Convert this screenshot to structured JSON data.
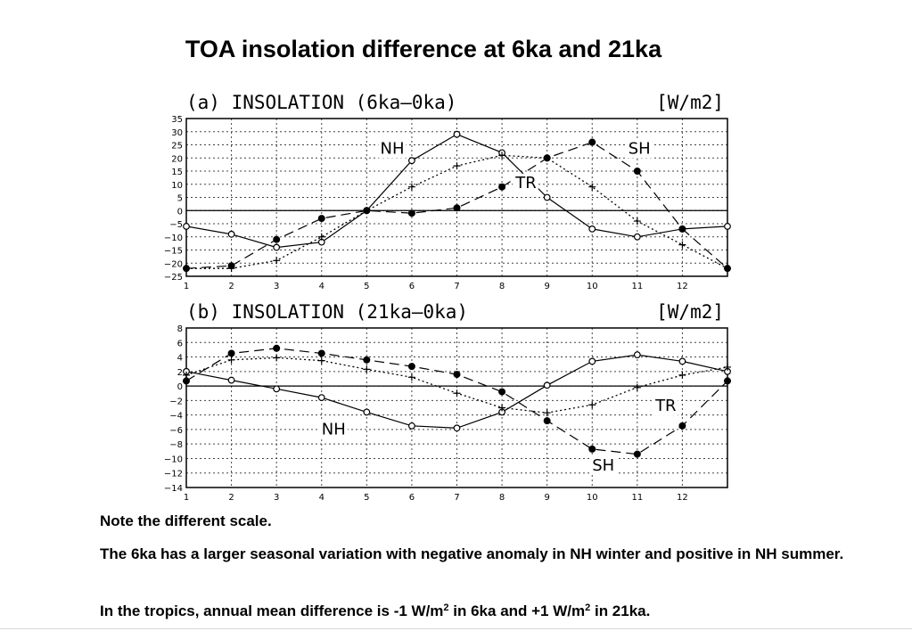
{
  "slide": {
    "title": "TOA insolation difference at 6ka and 21ka",
    "notes": {
      "note1": "Note the different scale.",
      "note2": "The 6ka has a larger seasonal variation with negative anomaly in NH winter and positive in NH summer.",
      "note3_a": "In the tropics, annual mean difference is -1 W/m",
      "note3_sup1": "2",
      "note3_b": " in 6ka and +1 W/m",
      "note3_sup2": "2",
      "note3_c": " in 21ka."
    }
  },
  "chart_data": [
    {
      "type": "line",
      "title": "(a) INSOLATION (6ka–0ka)",
      "unit_label": "[W/m2]",
      "x": [
        0,
        1,
        2,
        3,
        4,
        5,
        6,
        7,
        8,
        9,
        10,
        11,
        12
      ],
      "xticks": [
        1,
        2,
        3,
        4,
        5,
        6,
        7,
        8,
        9,
        10,
        11,
        12
      ],
      "xlim": [
        1,
        13
      ],
      "ylim": [
        -25,
        35
      ],
      "yticks": [
        35,
        30,
        25,
        20,
        15,
        10,
        5,
        0,
        -5,
        -10,
        -15,
        -20,
        -25
      ],
      "grid": true,
      "series": [
        {
          "name": "NH",
          "marker": "open-circle",
          "line": "solid",
          "values": [
            -6,
            -9,
            -14,
            -12,
            0,
            19,
            29,
            22,
            5,
            -7,
            -10,
            -7,
            -6
          ]
        },
        {
          "name": "SH",
          "marker": "filled-circle",
          "line": "dashed",
          "values": [
            -22,
            -21,
            -11,
            -3,
            0,
            -1,
            1,
            9,
            20,
            26,
            15,
            -7,
            -22
          ]
        },
        {
          "name": "TR",
          "marker": "plus",
          "line": "dotted",
          "values": [
            -22,
            -22,
            -19,
            -10,
            0,
            9,
            17,
            21,
            20,
            9,
            -4,
            -13,
            -22
          ]
        }
      ],
      "annotations": [
        {
          "text": "NH",
          "x": 5.3,
          "y": 24
        },
        {
          "text": "SH",
          "x": 10.8,
          "y": 24
        },
        {
          "text": "TR",
          "x": 8.3,
          "y": 11
        }
      ]
    },
    {
      "type": "line",
      "title": "(b) INSOLATION (21ka–0ka)",
      "unit_label": "[W/m2]",
      "x": [
        0,
        1,
        2,
        3,
        4,
        5,
        6,
        7,
        8,
        9,
        10,
        11,
        12
      ],
      "xticks": [
        1,
        2,
        3,
        4,
        5,
        6,
        7,
        8,
        9,
        10,
        11,
        12
      ],
      "xlim": [
        1,
        13
      ],
      "ylim": [
        -14,
        8
      ],
      "yticks": [
        8,
        6,
        4,
        2,
        0,
        -2,
        -4,
        -6,
        -8,
        -10,
        -12,
        -14
      ],
      "grid": true,
      "series": [
        {
          "name": "NH",
          "marker": "open-circle",
          "line": "solid",
          "values": [
            2,
            0.8,
            -0.4,
            -1.6,
            -3.6,
            -5.5,
            -5.8,
            -3.6,
            0.1,
            3.4,
            4.3,
            3.4,
            2
          ]
        },
        {
          "name": "SH",
          "marker": "filled-circle",
          "line": "dashed",
          "values": [
            0.7,
            4.5,
            5.2,
            4.5,
            3.6,
            2.7,
            1.6,
            -0.8,
            -4.8,
            -8.7,
            -9.4,
            -5.5,
            0.7
          ]
        },
        {
          "name": "TR",
          "marker": "plus",
          "line": "dotted",
          "values": [
            1.5,
            3.6,
            3.9,
            3.5,
            2.3,
            1.2,
            -1,
            -3,
            -3.7,
            -2.6,
            -0.2,
            1.5,
            2.6
          ]
        }
      ],
      "annotations": [
        {
          "text": "NH",
          "x": 4.0,
          "y": -5.8
        },
        {
          "text": "SH",
          "x": 10.0,
          "y": -10.8
        },
        {
          "text": "TR",
          "x": 11.4,
          "y": -2.6
        }
      ]
    }
  ]
}
